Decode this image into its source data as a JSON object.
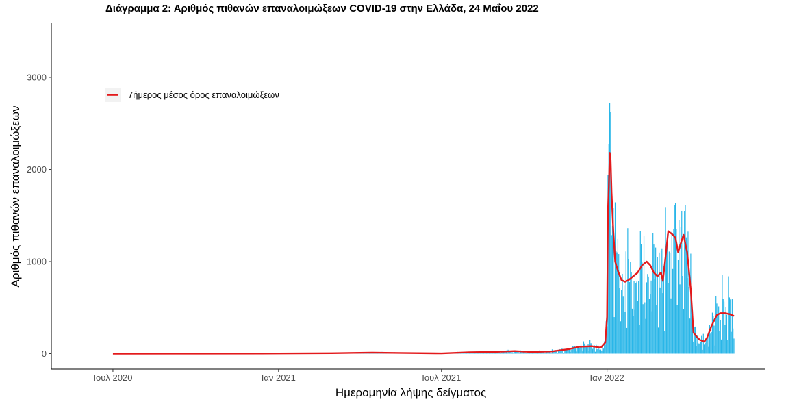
{
  "chart_data": {
    "type": "bar",
    "title": "Διάγραμμα 2: Αριθμός πιθανών επαναλοιμώξεων COVID-19 στην Ελλάδα, 24 Μαΐου 2022",
    "xlabel": "Ημερομηνία λήψης δείγματος",
    "ylabel": "Αριθμός πιθανών επαναλοιμώξεων",
    "x_ticks": [
      {
        "date": "2020-07-01",
        "label": "Ιουλ 2020"
      },
      {
        "date": "2021-01-01",
        "label": "Ιαν 2021"
      },
      {
        "date": "2021-07-01",
        "label": "Ιουλ 2021"
      },
      {
        "date": "2022-01-01",
        "label": "Ιαν 2022"
      }
    ],
    "y_ticks": [
      0,
      1000,
      2000,
      3000
    ],
    "xlim": [
      "2020-05-28",
      "2022-06-28"
    ],
    "ylim": [
      -150,
      3600
    ],
    "bar_color": "#29b6e8",
    "line_color": "#e31a1c",
    "legend": {
      "label": "7ήμερος μέσος όρος επαναλοιμώξεων",
      "position": "top-left"
    },
    "grid": false,
    "series": [
      {
        "type": "line",
        "points": [
          [
            "2020-07-01",
            0
          ],
          [
            "2020-10-01",
            1
          ],
          [
            "2021-01-01",
            2
          ],
          [
            "2021-03-01",
            5
          ],
          [
            "2021-04-15",
            12
          ],
          [
            "2021-05-15",
            8
          ],
          [
            "2021-07-01",
            3
          ],
          [
            "2021-08-01",
            15
          ],
          [
            "2021-09-01",
            20
          ],
          [
            "2021-09-20",
            28
          ],
          [
            "2021-10-10",
            18
          ],
          [
            "2021-11-01",
            25
          ],
          [
            "2021-11-20",
            50
          ],
          [
            "2021-12-01",
            75
          ],
          [
            "2021-12-15",
            80
          ],
          [
            "2021-12-25",
            65
          ],
          [
            "2021-12-30",
            120
          ],
          [
            "2022-01-01",
            400
          ],
          [
            "2022-01-02",
            1550
          ],
          [
            "2022-01-03",
            1820
          ],
          [
            "2022-01-04",
            2180
          ],
          [
            "2022-01-05",
            2100
          ],
          [
            "2022-01-06",
            1750
          ],
          [
            "2022-01-08",
            1320
          ],
          [
            "2022-01-10",
            1000
          ],
          [
            "2022-01-13",
            900
          ],
          [
            "2022-01-17",
            800
          ],
          [
            "2022-01-21",
            780
          ],
          [
            "2022-01-25",
            800
          ],
          [
            "2022-01-30",
            840
          ],
          [
            "2022-02-04",
            880
          ],
          [
            "2022-02-09",
            960
          ],
          [
            "2022-02-14",
            1000
          ],
          [
            "2022-02-18",
            960
          ],
          [
            "2022-02-22",
            880
          ],
          [
            "2022-02-26",
            840
          ],
          [
            "2022-03-02",
            880
          ],
          [
            "2022-03-04",
            790
          ],
          [
            "2022-03-07",
            1050
          ],
          [
            "2022-03-10",
            1330
          ],
          [
            "2022-03-14",
            1300
          ],
          [
            "2022-03-18",
            1260
          ],
          [
            "2022-03-21",
            1100
          ],
          [
            "2022-03-24",
            1200
          ],
          [
            "2022-03-27",
            1290
          ],
          [
            "2022-03-31",
            1100
          ],
          [
            "2022-04-04",
            700
          ],
          [
            "2022-04-07",
            230
          ],
          [
            "2022-04-10",
            190
          ],
          [
            "2022-04-14",
            150
          ],
          [
            "2022-04-19",
            130
          ],
          [
            "2022-04-22",
            170
          ],
          [
            "2022-04-27",
            300
          ],
          [
            "2022-05-03",
            420
          ],
          [
            "2022-05-07",
            440
          ],
          [
            "2022-05-12",
            440
          ],
          [
            "2022-05-17",
            430
          ],
          [
            "2022-05-22",
            410
          ]
        ]
      }
    ]
  }
}
